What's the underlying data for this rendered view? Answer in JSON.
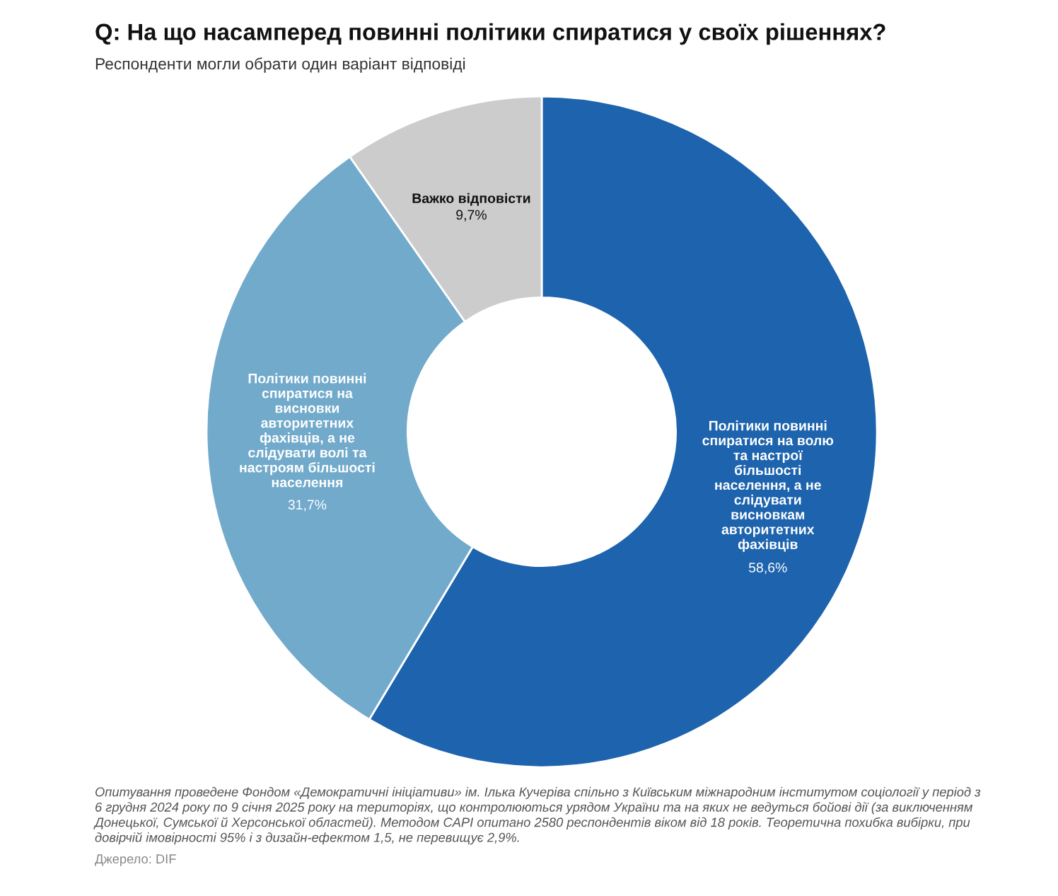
{
  "chart_data": {
    "type": "donut",
    "title": "Q: На що насамперед повинні політики спиратися у своїх рішеннях?",
    "subtitle": "Респонденти могли обрати один варіант відповіді",
    "categories": [
      "Політики повинні спиратися на волю та настрої більшості населення, а не слідувати висновкам авторитетних фахівців",
      "Політики повинні спиратися на висновки авторитетних фахівців, а не слідувати волі та настроям більшості населення",
      "Важко відповісти"
    ],
    "values": [
      58.6,
      31.7,
      9.7
    ],
    "colors": [
      "#1d63ad",
      "#72aacb",
      "#cccccc"
    ],
    "value_labels": [
      "58,6%",
      "31,7%",
      "9,7%"
    ],
    "annotations": [
      "Опитування проведене Фондом «Демократичні ініціативи» ім. Ілька Кучеріва спільно з Київським міжнародним інститутом соціології у період з 6 грудня 2024 року по 9 січня 2025 року на територіях, що контролюються урядом України та на яких не ведуться бойові дії (за виключенням Донецької, Сумської й Херсонської областей). Методом CAPI опитано 2580 респондентів віком від 18 років. Теоретична похибка вибірки, при довірчій імовірності 95% і з дизайн-ефектом 1,5, не перевищує 2,9%.",
      "Джерело: DIF"
    ]
  }
}
